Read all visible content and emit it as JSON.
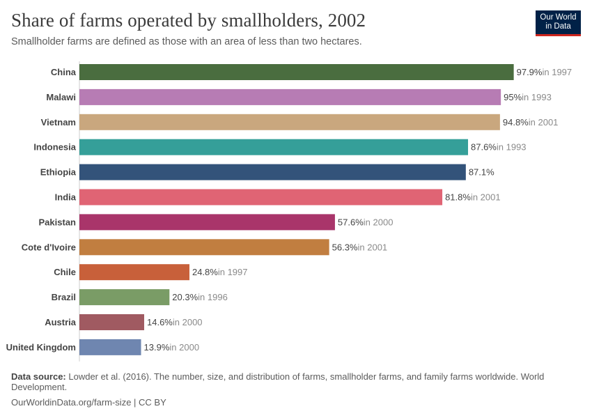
{
  "title": "Share of farms operated by smallholders, 2002",
  "subtitle": "Smallholder farms are defined as those with an area of less than two hectares.",
  "logo": {
    "line1": "Our World",
    "line2": "in Data",
    "bg_color": "#002147",
    "accent_color": "#ce261e"
  },
  "footer": {
    "source_label": "Data source:",
    "source_text": "Lowder et al. (2016). The number, size, and distribution of farms, smallholder farms, and family farms worldwide. World Development.",
    "url_license": "OurWorldinData.org/farm-size | CC BY"
  },
  "chart_data": {
    "type": "bar",
    "orientation": "horizontal",
    "unit": "%",
    "xlim": [
      0,
      100
    ],
    "grid": false,
    "categories": [
      "China",
      "Malawi",
      "Vietnam",
      "Indonesia",
      "Ethiopia",
      "India",
      "Pakistan",
      "Cote d'Ivoire",
      "Chile",
      "Brazil",
      "Austria",
      "United Kingdom"
    ],
    "values": [
      97.9,
      95,
      94.8,
      87.6,
      87.1,
      81.8,
      57.6,
      56.3,
      24.8,
      20.3,
      14.6,
      13.9
    ],
    "value_labels": [
      "97.9%",
      "95%",
      "94.8%",
      "87.6%",
      "87.1%",
      "81.8%",
      "57.6%",
      "56.3%",
      "24.8%",
      "20.3%",
      "14.6%",
      "13.9%"
    ],
    "year_notes": [
      "in 1997",
      "in 1993",
      "in 2001",
      "in 1993",
      "",
      "in 2001",
      "in 2000",
      "in 2001",
      "in 1997",
      "in 1996",
      "in 2000",
      "in 2000"
    ],
    "colors": [
      "#4a6d3f",
      "#b77cb4",
      "#c9a77e",
      "#359f99",
      "#33537a",
      "#e06474",
      "#a9356a",
      "#c17e40",
      "#c8603a",
      "#7a9c66",
      "#a05a61",
      "#6f86b0"
    ]
  }
}
